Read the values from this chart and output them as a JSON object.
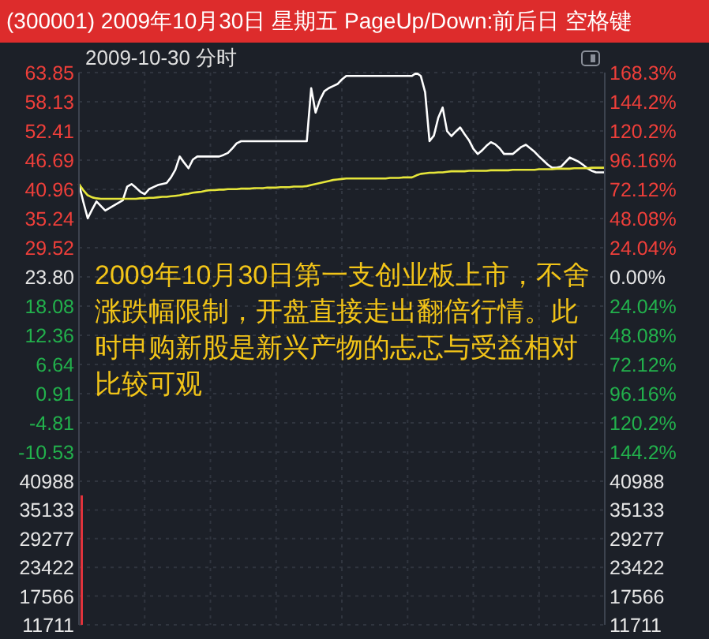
{
  "chart_data": [
    {
      "type": "line",
      "title": "(300001) 2009年10月30日 星期五 PageUp/Down:前后日 空格键",
      "subtitle": "2009-10-30 分时",
      "annotations": [
        "2009年10月30日第一支创业板上市，不舍涨跌幅限制，开盘直接走出翻倍行情。此时申购新股是新兴产物的忐忑与受益相对比较可观"
      ],
      "categories": [
        null,
        null,
        null,
        null,
        null,
        null,
        null,
        null,
        null,
        null,
        null,
        null,
        null,
        null,
        null,
        null,
        null,
        null,
        null,
        null,
        null,
        null,
        null,
        null,
        null,
        null,
        null,
        null,
        null,
        null,
        null,
        null,
        null,
        null,
        null,
        null,
        null,
        null,
        null,
        null,
        null,
        null,
        null,
        null,
        null,
        null,
        null,
        null,
        null,
        null,
        null,
        null,
        null,
        null,
        null,
        null,
        null,
        null,
        null,
        null,
        null,
        null,
        null,
        null,
        null,
        null,
        null,
        null,
        null,
        null,
        null,
        null,
        null,
        null,
        null,
        null,
        null,
        null,
        null,
        null,
        null,
        null,
        null,
        null,
        null,
        null,
        null,
        null,
        null,
        null,
        null,
        null,
        null,
        null,
        null,
        null,
        null,
        null,
        null,
        null,
        null,
        null,
        null,
        null,
        null,
        null,
        null,
        null,
        null,
        null,
        null,
        null,
        null,
        null,
        null,
        null,
        null,
        null,
        null,
        null,
        null
      ],
      "series": [
        {
          "color": "#ffffff",
          "values": [
            42.0,
            38.5,
            35.3,
            37.0,
            38.6,
            37.7,
            36.8,
            37.3,
            37.8,
            38.3,
            38.8,
            41.5,
            42.0,
            41.3,
            40.5,
            40.0,
            41.0,
            41.4,
            41.8,
            42.0,
            42.2,
            43.3,
            44.8,
            47.4,
            46.2,
            45.1,
            46.8,
            47.4,
            47.4,
            47.4,
            47.4,
            47.4,
            47.4,
            47.7,
            48.1,
            49.0,
            50.0,
            50.4,
            50.4,
            50.4,
            50.4,
            50.4,
            50.4,
            50.4,
            50.4,
            50.4,
            50.4,
            50.4,
            50.4,
            50.4,
            50.4,
            50.4,
            50.4,
            60.8,
            56.0,
            58.5,
            60.2,
            60.8,
            61.2,
            61.6,
            62.5,
            63.2,
            63.2,
            63.2,
            63.2,
            63.2,
            63.2,
            63.2,
            63.2,
            63.2,
            63.2,
            63.2,
            63.2,
            63.2,
            63.2,
            63.2,
            63.2,
            63.8,
            63.2,
            60.0,
            50.4,
            51.5,
            55.0,
            57.0,
            52.4,
            51.4,
            52.3,
            53.1,
            51.8,
            50.6,
            48.9,
            47.9,
            48.6,
            49.5,
            50.2,
            49.8,
            49.0,
            47.9,
            47.9,
            47.9,
            48.6,
            49.3,
            49.7,
            49.0,
            48.3,
            47.4,
            46.6,
            45.8,
            45.2,
            45.2,
            45.4,
            46.3,
            47.2,
            46.8,
            46.4,
            45.8,
            45.1,
            44.6,
            44.3,
            44.3,
            44.3
          ]
        },
        {
          "color": "#e6e63a",
          "values": [
            42.0,
            40.8,
            39.8,
            39.4,
            39.2,
            39.1,
            39.1,
            39.1,
            39.1,
            39.1,
            39.1,
            39.1,
            39.1,
            39.1,
            39.2,
            39.2,
            39.3,
            39.3,
            39.4,
            39.5,
            39.5,
            39.6,
            39.7,
            39.8,
            40.0,
            40.1,
            40.3,
            40.4,
            40.5,
            40.7,
            40.8,
            40.8,
            40.9,
            40.9,
            41.0,
            41.0,
            41.0,
            41.1,
            41.1,
            41.1,
            41.2,
            41.2,
            41.2,
            41.3,
            41.3,
            41.3,
            41.4,
            41.4,
            41.4,
            41.5,
            41.5,
            41.5,
            41.6,
            41.8,
            42.0,
            42.2,
            42.4,
            42.6,
            42.8,
            42.9,
            43.0,
            43.1,
            43.1,
            43.1,
            43.1,
            43.1,
            43.1,
            43.1,
            43.1,
            43.1,
            43.1,
            43.2,
            43.2,
            43.2,
            43.3,
            43.3,
            43.3,
            43.7,
            44.0,
            44.1,
            44.2,
            44.2,
            44.3,
            44.3,
            44.4,
            44.5,
            44.5,
            44.5,
            44.5,
            44.6,
            44.6,
            44.6,
            44.6,
            44.6,
            44.7,
            44.7,
            44.7,
            44.7,
            44.7,
            44.8,
            44.8,
            44.8,
            44.8,
            44.8,
            44.8,
            44.9,
            44.9,
            44.9,
            44.9,
            45.0,
            45.0,
            45.0,
            45.0,
            45.1,
            45.1,
            45.1,
            45.1,
            45.2,
            45.2,
            45.2,
            45.2
          ]
        }
      ],
      "ylim": [
        -16.25,
        63.85
      ],
      "yticks": [
        63.85,
        58.13,
        52.41,
        46.69,
        40.96,
        35.24,
        29.52,
        {
          "value": 23.8,
          "label": "23.80"
        },
        18.08,
        12.36,
        6.64,
        0.91,
        -4.81,
        -10.53
      ],
      "y2lim": [
        -168.3,
        168.3
      ],
      "y2ticks": [
        {
          "value": 168.3,
          "label": "168.3%"
        },
        {
          "value": 144.2,
          "label": "144.2%"
        },
        {
          "value": 120.2,
          "label": "120.2%"
        },
        {
          "value": 96.16,
          "label": "96.16%"
        },
        {
          "value": 72.12,
          "label": "72.12%"
        },
        {
          "value": 48.08,
          "label": "48.08%"
        },
        {
          "value": 24.04,
          "label": "24.04%"
        },
        {
          "value": 0,
          "label": "0.00%"
        },
        {
          "value": -24.04,
          "label": "24.04%"
        },
        {
          "value": -48.08,
          "label": "48.08%"
        },
        {
          "value": -72.12,
          "label": "72.12%"
        },
        {
          "value": -96.16,
          "label": "96.16%"
        },
        {
          "value": -120.2,
          "label": "120.2%"
        },
        {
          "value": -144.2,
          "label": "144.2%"
        }
      ],
      "grid": true,
      "marker": "none"
    },
    {
      "type": "bar",
      "categories": [
        null,
        null,
        null,
        null,
        null,
        null,
        null,
        null,
        null,
        null,
        null,
        null,
        null,
        null,
        null,
        null,
        null,
        null,
        null,
        null,
        null,
        null,
        null,
        null,
        null,
        null,
        null,
        null,
        null,
        null,
        null,
        null,
        null,
        null,
        null,
        null,
        null,
        null,
        null,
        null,
        null,
        null,
        null,
        null,
        null,
        null,
        null,
        null,
        null,
        null,
        null,
        null,
        null,
        null,
        null,
        null,
        null,
        null,
        null,
        null,
        null,
        null,
        null,
        null,
        null,
        null,
        null,
        null,
        null,
        null,
        null,
        null,
        null,
        null,
        null,
        null,
        null,
        null,
        null,
        null,
        null,
        null,
        null,
        null,
        null,
        null,
        null,
        null,
        null,
        null,
        null,
        null,
        null,
        null,
        null,
        null,
        null,
        null,
        null,
        null,
        null,
        null,
        null,
        null,
        null,
        null,
        null,
        null,
        null,
        null,
        null,
        null,
        null,
        null,
        null,
        null,
        null,
        null,
        null,
        null,
        null
      ],
      "values": [
        38100,
        null,
        null,
        null,
        null,
        null,
        null,
        null,
        null,
        null,
        null,
        null,
        null,
        null,
        null,
        null,
        null,
        null,
        null,
        null,
        null,
        null,
        null,
        null,
        null,
        null,
        null,
        null,
        null,
        null,
        null,
        null,
        null,
        null,
        null,
        null,
        null,
        null,
        null,
        null,
        null,
        null,
        null,
        null,
        null,
        null,
        null,
        null,
        null,
        null,
        null,
        null,
        null,
        null,
        null,
        null,
        null,
        null,
        null,
        null,
        null,
        null,
        null,
        null,
        null,
        null,
        null,
        null,
        null,
        null,
        null,
        null,
        null,
        null,
        null,
        null,
        null,
        null,
        null,
        null,
        null,
        null,
        null,
        null,
        null,
        null,
        null,
        null,
        null,
        null,
        null,
        null,
        null,
        null,
        null,
        null,
        null,
        null,
        null,
        null,
        null,
        null,
        null,
        null,
        null,
        null,
        null,
        null,
        null,
        null,
        null,
        null,
        null,
        null,
        null,
        null,
        null,
        null,
        null,
        null,
        null
      ],
      "color": "#e0333c",
      "ylim": [
        11711,
        40988
      ],
      "yticks": [
        40988,
        35133,
        29277,
        23422,
        17566,
        11711
      ],
      "y2lim": [
        11711,
        40988
      ],
      "y2ticks": [
        40988,
        35133,
        29277,
        23422,
        17566,
        11711
      ],
      "grid": true
    }
  ]
}
